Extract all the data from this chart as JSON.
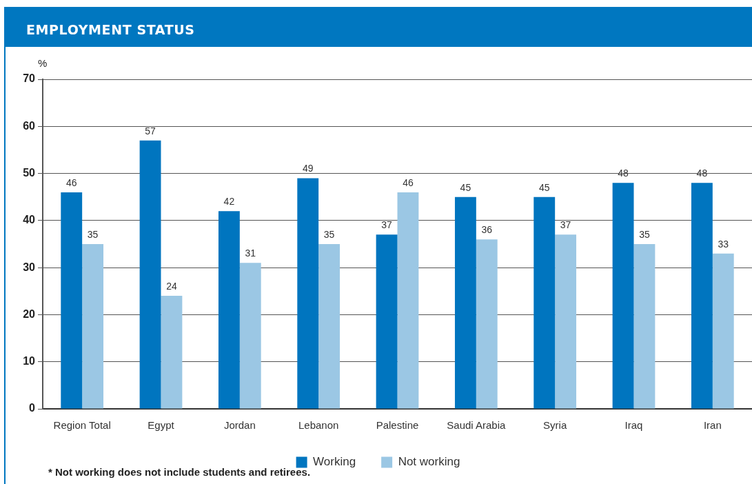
{
  "chart_data": {
    "type": "bar",
    "title": "EMPLOYMENT STATUS",
    "ylabel": "%",
    "categories": [
      "Region Total",
      "Egypt",
      "Jordan",
      "Lebanon",
      "Palestine",
      "Saudi Arabia",
      "Syria",
      "Iraq",
      "Iran"
    ],
    "series": [
      {
        "name": "Working",
        "color": "#0075bf",
        "values": [
          46,
          57,
          42,
          49,
          37,
          45,
          45,
          48,
          48
        ]
      },
      {
        "name": "Not working",
        "color": "#9bc7e4",
        "values": [
          35,
          24,
          31,
          35,
          46,
          36,
          37,
          35,
          33
        ]
      }
    ],
    "ylim": [
      0,
      70
    ],
    "yticks": [
      0,
      10,
      20,
      30,
      40,
      50,
      60,
      70
    ],
    "grid": "y",
    "legend": "bottom",
    "data_labels": true,
    "annotations": [
      "* Not working does not include students and retirees."
    ]
  }
}
